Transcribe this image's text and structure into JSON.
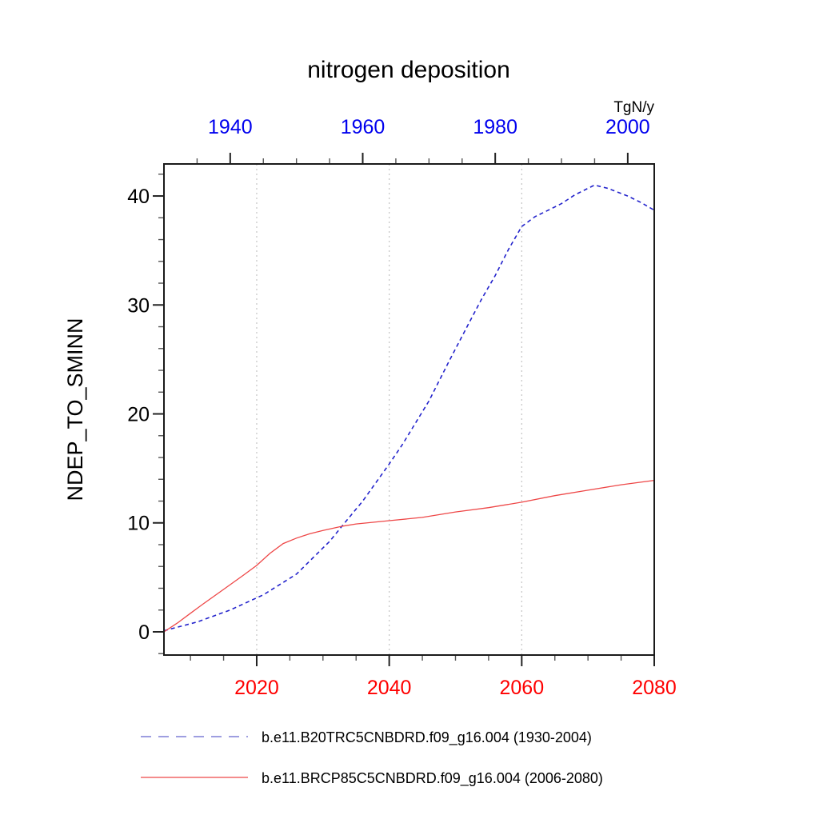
{
  "title": "nitrogen deposition",
  "unit_label": "TgN/y",
  "y_axis_title": "NDEP_TO_SMINN",
  "colors": {
    "top_axis_labels": "#0000ee",
    "bottom_axis_labels": "#ff0000",
    "gridline": "#c4c4c4",
    "axis_frame": "#1a1a1a",
    "series_historical": "#2323cc",
    "series_historical_legend": "#9191dc",
    "series_rcp85": "#ee4747"
  },
  "chart_data": {
    "type": "line",
    "title": "nitrogen deposition",
    "ylabel": "NDEP_TO_SMINN",
    "unit": "TgN/y",
    "grid": {
      "vertical_gridlines_bottom_years": [
        2020,
        2040,
        2060
      ],
      "horizontal": false
    },
    "axes": {
      "bottom": {
        "range": [
          2006,
          2080
        ],
        "major_ticks": [
          2020,
          2040,
          2060,
          2080
        ],
        "minor_step": 5,
        "label_color": "#ff0000"
      },
      "top": {
        "range": [
          1930,
          2004
        ],
        "major_ticks": [
          1940,
          1960,
          1980,
          2000
        ],
        "minor_step": 5,
        "label_color": "#0000ee"
      },
      "left": {
        "range": [
          -2.13,
          42.94
        ],
        "major_ticks": [
          0,
          10,
          20,
          30,
          40
        ],
        "minor_step": 2
      }
    },
    "series": [
      {
        "name": "b.e11.B20TRC5CNBDRD.f09_g16.004 (1930-2004)",
        "axis": "top",
        "style": "dashed",
        "color": "#2323cc",
        "legend_color": "#9191dc",
        "points": [
          [
            1930,
            0.1
          ],
          [
            1935,
            0.9
          ],
          [
            1940,
            2.0
          ],
          [
            1945,
            3.4
          ],
          [
            1950,
            5.3
          ],
          [
            1955,
            8.3
          ],
          [
            1957,
            9.8
          ],
          [
            1960,
            12.0
          ],
          [
            1962,
            13.7
          ],
          [
            1964,
            15.4
          ],
          [
            1966,
            17.2
          ],
          [
            1968,
            19.2
          ],
          [
            1970,
            21.2
          ],
          [
            1973,
            24.8
          ],
          [
            1976,
            28.3
          ],
          [
            1978,
            30.6
          ],
          [
            1980,
            32.7
          ],
          [
            1982,
            35.1
          ],
          [
            1984,
            37.2
          ],
          [
            1986,
            38.1
          ],
          [
            1988,
            38.7
          ],
          [
            1990,
            39.3
          ],
          [
            1992,
            40.1
          ],
          [
            1995,
            41.0
          ],
          [
            1997,
            40.7
          ],
          [
            2000,
            40.0
          ],
          [
            2002,
            39.4
          ],
          [
            2004,
            38.7
          ]
        ]
      },
      {
        "name": "b.e11.BRCP85C5CNBDRD.f09_g16.004 (2006-2080)",
        "axis": "bottom",
        "style": "solid",
        "color": "#ee4747",
        "legend_color": "#ee4747",
        "points": [
          [
            2006,
            0.0
          ],
          [
            2008,
            0.8
          ],
          [
            2010,
            1.7
          ],
          [
            2012,
            2.6
          ],
          [
            2015,
            3.9
          ],
          [
            2018,
            5.2
          ],
          [
            2020,
            6.1
          ],
          [
            2022,
            7.2
          ],
          [
            2024,
            8.1
          ],
          [
            2026,
            8.6
          ],
          [
            2028,
            9.0
          ],
          [
            2030,
            9.3
          ],
          [
            2033,
            9.7
          ],
          [
            2035,
            9.9
          ],
          [
            2040,
            10.2
          ],
          [
            2045,
            10.5
          ],
          [
            2050,
            11.0
          ],
          [
            2055,
            11.4
          ],
          [
            2060,
            11.9
          ],
          [
            2065,
            12.5
          ],
          [
            2070,
            13.0
          ],
          [
            2075,
            13.5
          ],
          [
            2080,
            13.9
          ]
        ]
      }
    ],
    "legend": {
      "position": "below-plot",
      "entries": [
        {
          "label": "b.e11.B20TRC5CNBDRD.f09_g16.004 (1930-2004)",
          "style": "dashed"
        },
        {
          "label": "b.e11.BRCP85C5CNBDRD.f09_g16.004 (2006-2080)",
          "style": "solid"
        }
      ]
    }
  }
}
